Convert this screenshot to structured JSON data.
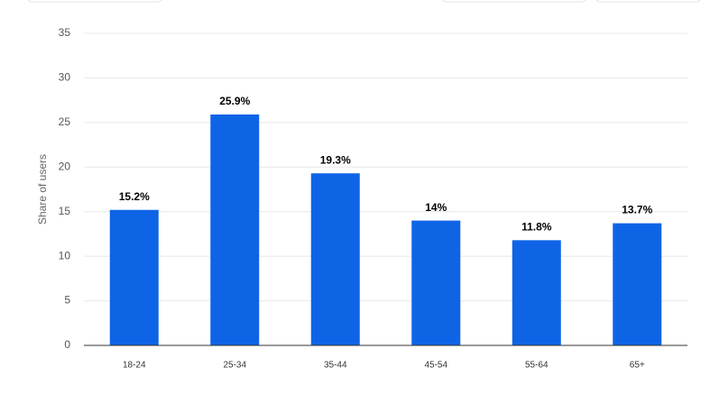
{
  "chart_data": {
    "type": "bar",
    "y_label": "Share of users",
    "categories": [
      "18-24",
      "25-34",
      "35-44",
      "45-54",
      "55-64",
      "65+"
    ],
    "values": [
      15.2,
      25.9,
      19.3,
      14,
      11.8,
      13.7
    ],
    "value_labels": [
      "15.2%",
      "25.9%",
      "19.3%",
      "14%",
      "11.8%",
      "13.7%"
    ],
    "color": "#0f64e6",
    "ylim": [
      0,
      35
    ],
    "yticks": [
      0,
      5,
      10,
      15,
      20,
      25,
      30,
      35
    ],
    "grid": true
  }
}
